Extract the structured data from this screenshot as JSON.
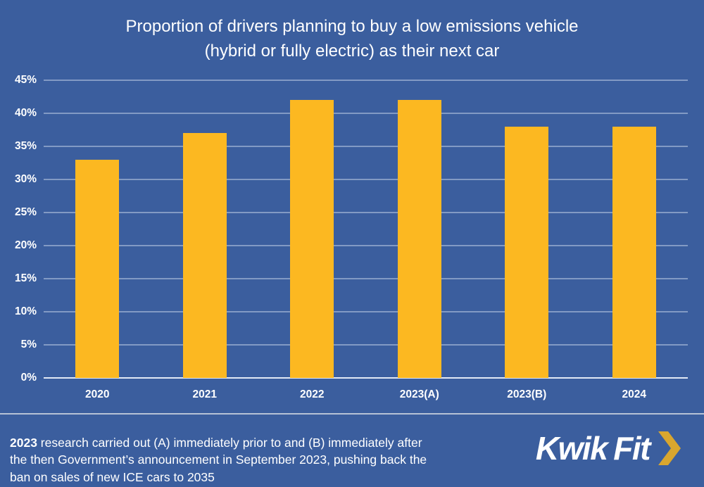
{
  "chart_data": {
    "type": "bar",
    "title": "Proportion of drivers planning to buy a low emissions vehicle (hybrid or fully electric) as their next car",
    "title_lines": [
      "Proportion of drivers planning to buy a low emissions vehicle",
      "(hybrid or fully electric) as their next car"
    ],
    "categories": [
      "2020",
      "2021",
      "2022",
      "2023(A)",
      "2023(B)",
      "2024"
    ],
    "values": [
      33,
      37,
      42,
      42,
      38,
      38
    ],
    "xlabel": "",
    "ylabel": "",
    "ylim": [
      0,
      45
    ],
    "ytick_step": 5,
    "ytick_labels": [
      "0%",
      "5%",
      "10%",
      "15%",
      "20%",
      "25%",
      "30%",
      "35%",
      "40%",
      "45%"
    ],
    "grid": true,
    "legend": "none",
    "bar_color": "#FCB821",
    "background_color": "#3B5E9E",
    "gridline_color": "#C9D5EB"
  },
  "footnote": {
    "bold_prefix": "2023",
    "line1_rest": " research carried out (A) immediately prior to and (B) immediately after",
    "line2": "the then Government’s announcement in September 2023, pushing back the",
    "line3": "ban on sales of new ICE cars to 2035"
  },
  "logo": {
    "brand": "Kwik Fit",
    "part1": "Kwik",
    "part2": "Fit",
    "text_color": "#ffffff",
    "chevron_color": "#D9A62E"
  }
}
